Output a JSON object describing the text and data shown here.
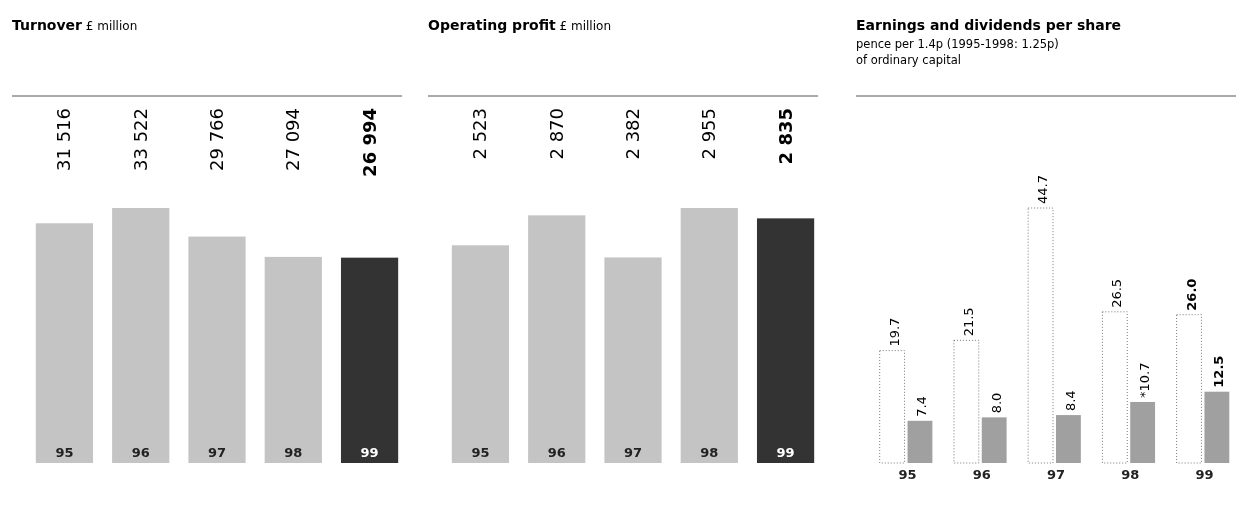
{
  "chart_data": [
    {
      "type": "bar",
      "title": "Turnover",
      "subtitle": "£ million",
      "categories": [
        "95",
        "96",
        "97",
        "98",
        "99"
      ],
      "values": [
        31516,
        33522,
        29766,
        27094,
        26994
      ],
      "colors": [
        "#c4c4c4",
        "#c4c4c4",
        "#c4c4c4",
        "#c4c4c4",
        "#333333"
      ],
      "value_labels": [
        "31 516",
        "33 522",
        "29 766",
        "27 094",
        "26 994"
      ]
    },
    {
      "type": "bar",
      "title": "Operating profit",
      "subtitle": "£ million",
      "categories": [
        "95",
        "96",
        "97",
        "98",
        "99"
      ],
      "values": [
        2523,
        2870,
        2382,
        2955,
        2835
      ],
      "colors": [
        "#c4c4c4",
        "#c4c4c4",
        "#c4c4c4",
        "#c4c4c4",
        "#333333"
      ],
      "value_labels": [
        "2 523",
        "2 870",
        "2 382",
        "2 955",
        "2 835"
      ]
    },
    {
      "type": "bar",
      "title": "Earnings and dividends per share",
      "subtitle": "pence per 1.4p (1995-1998: 1.25p)\nof ordinary capital",
      "categories": [
        "95",
        "96",
        "97",
        "98",
        "99"
      ],
      "series": [
        {
          "color": "#ffffff",
          "values": [
            19.7,
            21.5,
            44.7,
            26.5,
            26.0
          ],
          "value_labels": [
            "19.7",
            "21.5",
            "44.7",
            "26.5",
            "26.0"
          ]
        },
        {
          "color": "#a0a0a0",
          "values": [
            7.4,
            8.0,
            8.4,
            10.7,
            12.5
          ],
          "value_labels": [
            "7.4",
            "8.0",
            "8.4",
            "*10.7",
            "12.5"
          ]
        }
      ]
    }
  ]
}
